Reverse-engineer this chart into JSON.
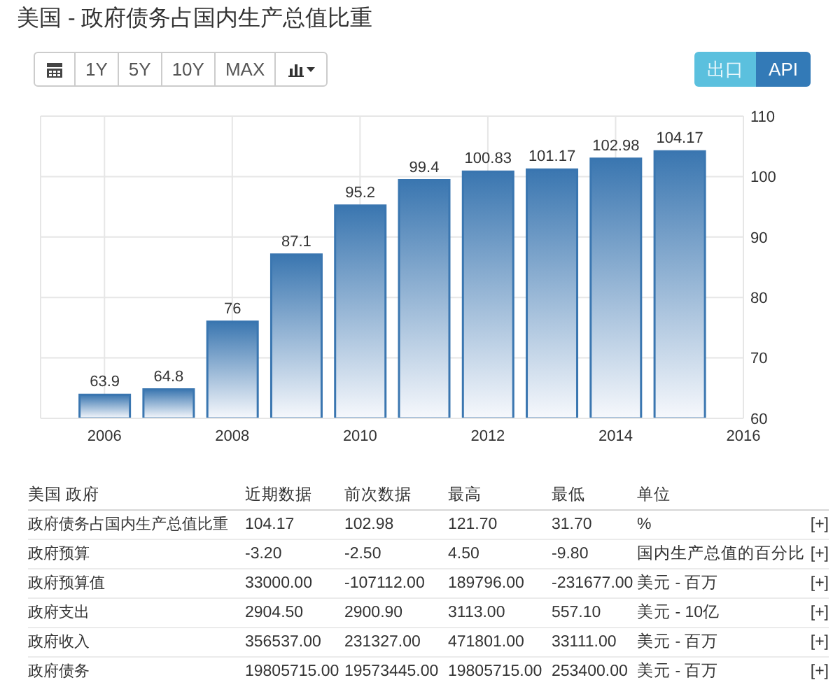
{
  "chart_data": [
    {
      "type": "bar",
      "title": "美国 - 政府债务占国内生产总值比重",
      "x": [
        2006,
        2007,
        2008,
        2009,
        2010,
        2011,
        2012,
        2013,
        2014,
        2015
      ],
      "values": [
        63.9,
        64.8,
        76,
        87.1,
        95.2,
        99.4,
        100.83,
        101.17,
        102.98,
        104.17
      ],
      "color": "#3a76b0",
      "xlim": [
        2005,
        2016
      ],
      "xticks": [
        2006,
        2008,
        2010,
        2012,
        2014,
        2016
      ],
      "ylim": [
        60,
        110
      ],
      "yticks": [
        60,
        70,
        80,
        90,
        100,
        110
      ],
      "grid": true,
      "data_labels": true
    },
    {
      "type": "other",
      "categories": [
        "1Y",
        "5Y",
        "10Y",
        "MAX",
        "出口",
        "API"
      ]
    },
    {
      "type": "other",
      "categories": [
        "美国 政府",
        "近期数据",
        "前次数据",
        "最高",
        "最低",
        "单位"
      ],
      "y_categories": [
        "政府债务占国内生产总值比重",
        "政府预算",
        "政府预算值",
        "政府支出",
        "政府收入",
        "政府债务"
      ],
      "cell_labels": [
        [
          "104.17",
          "102.98",
          "121.70",
          "31.70",
          "%",
          "[+]"
        ],
        [
          "-3.20",
          "-2.50",
          "4.50",
          "-9.80",
          "国内生产总值的百分比",
          "[+]"
        ],
        [
          "33000.00",
          "-107112.00",
          "189796.00",
          "-231677.00",
          "美元 - 百万",
          "[+]"
        ],
        [
          "2904.50",
          "2900.90",
          "3113.00",
          "557.10",
          "美元 - 10亿",
          "[+]"
        ],
        [
          "356537.00",
          "231327.00",
          "471801.00",
          "33111.00",
          "美元 - 百万",
          "[+]"
        ],
        [
          "19805715.00",
          "19573445.00",
          "19805715.00",
          "253400.00",
          "美元 - 百万",
          "[+]"
        ]
      ]
    }
  ]
}
